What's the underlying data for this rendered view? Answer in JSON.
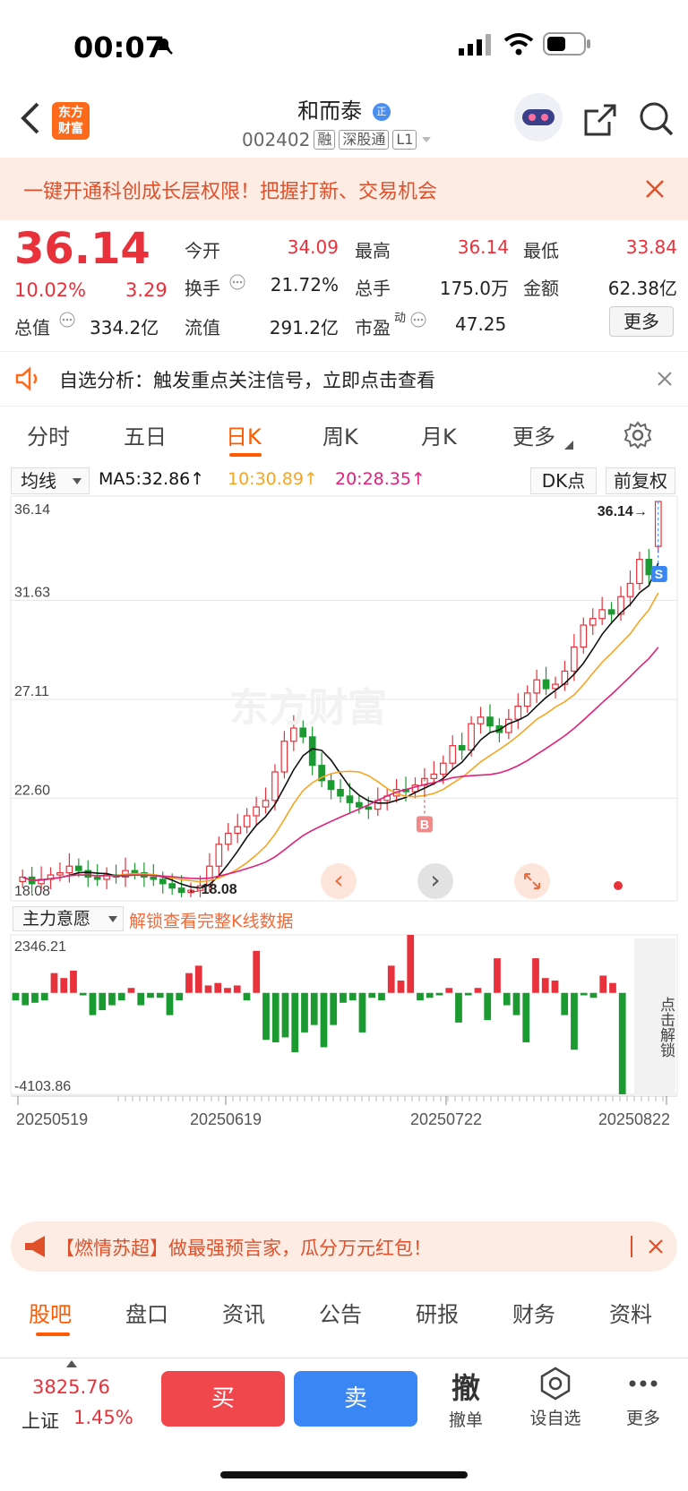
{
  "status": {
    "time": "00:07"
  },
  "header": {
    "logo_line1": "东方",
    "logo_line2": "财富",
    "title": "和而泰",
    "title_badge": "正",
    "code": "002402",
    "tags": [
      "融",
      "深股通",
      "L1"
    ]
  },
  "promo": {
    "text": "一键开通科创成长层权限！把握打新、交易机会"
  },
  "quote": {
    "price": "36.14",
    "change_pct": "10.02%",
    "change": "3.29",
    "open_label": "今开",
    "open": "34.09",
    "high_label": "最高",
    "high": "36.14",
    "low_label": "最低",
    "low": "33.84",
    "turnover_label": "换手",
    "turnover": "21.72%",
    "volume_label": "总手",
    "volume": "175.0万",
    "amount_label": "金额",
    "amount": "62.38亿",
    "mcap_label": "总值",
    "mcap": "334.2亿",
    "float_label": "流值",
    "float": "291.2亿",
    "pe_label": "市盈",
    "pe_sup": "动",
    "pe": "47.25",
    "more": "更多"
  },
  "notice": {
    "text": "自选分析：触发重点关注信号，立即点击查看"
  },
  "ktabs": [
    "分时",
    "五日",
    "日K",
    "周K",
    "月K",
    "更多"
  ],
  "ktab_active": 2,
  "chart_controls": {
    "ma_select": "均线",
    "ma5": "MA5:32.86↑",
    "ma10": "10:30.89↑",
    "ma20": "20:28.35↑",
    "dk": "DK点",
    "adjust": "前复权",
    "max_marker": "36.14→",
    "min_marker": "←18.08",
    "watermark": "东方财富",
    "signal_b": "B",
    "signal_s": "S"
  },
  "chart_data": [
    {
      "type": "candlestick",
      "y_ticks": [
        "36.14",
        "31.63",
        "27.11",
        "22.60",
        "18.08"
      ],
      "ylim": [
        18.08,
        36.14
      ],
      "x_ticks": [
        "20250519",
        "20250619",
        "20250722",
        "20250822"
      ],
      "ma_values": {
        "MA5": 32.86,
        "MA10": 30.89,
        "MA20": 28.35
      },
      "closes": [
        19.0,
        18.7,
        18.9,
        19.1,
        19.2,
        19.5,
        19.3,
        19.0,
        18.9,
        19.1,
        19.0,
        19.3,
        19.2,
        19.0,
        18.9,
        18.7,
        18.5,
        18.3,
        18.4,
        18.6,
        19.5,
        20.5,
        21.0,
        21.3,
        21.8,
        22.2,
        22.5,
        23.8,
        25.2,
        25.8,
        25.4,
        24.1,
        23.4,
        23.0,
        22.7,
        22.4,
        22.2,
        22.1,
        22.5,
        22.7,
        23.0,
        22.9,
        23.2,
        23.5,
        23.7,
        24.2,
        25.0,
        24.8,
        26.0,
        26.3,
        25.9,
        25.6,
        26.2,
        26.8,
        27.4,
        28.0,
        27.6,
        27.8,
        28.4,
        29.5,
        30.5,
        30.8,
        31.2,
        31.0,
        31.8,
        32.4,
        33.5,
        32.8,
        36.14
      ],
      "opens": [
        18.8,
        19.0,
        18.7,
        18.9,
        19.1,
        19.2,
        19.5,
        19.3,
        19.0,
        18.9,
        19.1,
        19.0,
        19.3,
        19.2,
        19.0,
        18.9,
        18.7,
        18.5,
        18.3,
        18.4,
        18.6,
        19.5,
        20.5,
        21.0,
        21.3,
        21.8,
        22.2,
        22.5,
        23.8,
        25.2,
        25.8,
        25.4,
        24.1,
        23.4,
        23.0,
        22.7,
        22.4,
        22.2,
        22.1,
        22.5,
        22.7,
        23.0,
        22.9,
        23.2,
        23.5,
        23.7,
        24.2,
        25.0,
        24.8,
        26.0,
        26.3,
        25.9,
        25.6,
        26.2,
        26.8,
        27.4,
        28.0,
        27.6,
        27.8,
        28.4,
        29.5,
        30.5,
        30.8,
        31.2,
        31.0,
        31.8,
        32.4,
        33.5,
        34.09
      ]
    },
    {
      "type": "bar",
      "title": "主力意愿",
      "unlock_text": "解锁查看完整K线数据",
      "y_ticks": [
        "2346.21",
        "-4103.86"
      ],
      "ylim": [
        -4103.86,
        2346.21
      ],
      "values": [
        -300,
        -500,
        -400,
        -300,
        800,
        600,
        900,
        -100,
        -900,
        -700,
        -500,
        -300,
        200,
        -500,
        -200,
        -200,
        -900,
        -300,
        800,
        1100,
        300,
        400,
        200,
        300,
        -300,
        1700,
        -1900,
        -2000,
        -1800,
        -2400,
        -1600,
        -1300,
        -2200,
        -1300,
        -400,
        -300,
        -1600,
        -200,
        -300,
        1100,
        500,
        2346,
        -300,
        -200,
        -100,
        200,
        -1200,
        -100,
        200,
        -1100,
        1400,
        -500,
        -900,
        -2000,
        1400,
        600,
        500,
        -900,
        -2300,
        -100,
        -200,
        700,
        400,
        -4103.86
      ]
    }
  ],
  "chart_nav": {
    "prev": "‹",
    "next": "›"
  },
  "unlock_side": "点击解锁",
  "promo2": {
    "text": "【燃情苏超】做最强预言家，瓜分万元红包！"
  },
  "btabs": [
    "股吧",
    "盘口",
    "资讯",
    "公告",
    "研报",
    "财务",
    "资料"
  ],
  "btab_active": 0,
  "bottom": {
    "index_value": "3825.76",
    "index_name": "上证",
    "index_change": "1.45%",
    "buy": "买",
    "sell": "卖",
    "cancel_glyph": "撤",
    "cancel": "撤单",
    "watch": "设自选",
    "more": "更多"
  },
  "colors": {
    "up": "#e8313a",
    "down": "#1a9a30",
    "ma5": "#111111",
    "ma10": "#f5a623",
    "ma20": "#e0207a",
    "accent": "#ff6a1a"
  }
}
